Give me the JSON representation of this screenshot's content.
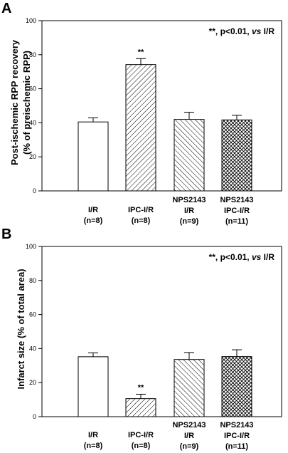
{
  "chart_data": [
    {
      "panel": "A",
      "type": "bar",
      "title": "",
      "ylabel": "Post-ischemic RPP recovery",
      "ylabel2": "(% of preischemic RPP)",
      "ylim": [
        0,
        100
      ],
      "yticks": [
        "0",
        "20",
        "40",
        "60",
        "80",
        "100"
      ],
      "annotation": {
        "prefix": "**, p<0.01, ",
        "emph": "vs",
        "suffix": " I/R"
      },
      "categories": [
        {
          "line1": "I/R",
          "line2": "(n=8)"
        },
        {
          "line1": "IPC-I/R",
          "line2": "(n=8)"
        },
        {
          "line1": "NPS2143",
          "line2": "I/R",
          "line3": "(n=9)"
        },
        {
          "line1": "NPS2143",
          "line2": "IPC-I/R",
          "line3": "(n=11)"
        }
      ],
      "values": [
        40.5,
        74.2,
        42.0,
        41.7
      ],
      "errors": [
        2.4,
        3.5,
        4.2,
        2.7
      ],
      "significance": [
        "",
        "**",
        "",
        ""
      ],
      "fills": [
        "white",
        "diagonal",
        "cross-diagonal",
        "crosshatch"
      ]
    },
    {
      "panel": "B",
      "type": "bar",
      "title": "",
      "ylabel": "Infarct size (% of total area)",
      "ylim": [
        0,
        100
      ],
      "yticks": [
        "0",
        "20",
        "40",
        "60",
        "80",
        "100"
      ],
      "annotation": {
        "prefix": "**, p<0.01, ",
        "emph": "vs",
        "suffix": " I/R"
      },
      "categories": [
        {
          "line1": "I/R",
          "line2": "(n=8)"
        },
        {
          "line1": "IPC-I/R",
          "line2": "(n=8)"
        },
        {
          "line1": "NPS2143",
          "line2": "I/R",
          "line3": "(n=9)"
        },
        {
          "line1": "NPS2143",
          "line2": "IPC-I/R",
          "line3": "(n=11)"
        }
      ],
      "values": [
        35.2,
        10.6,
        33.6,
        35.3
      ],
      "errors": [
        2.3,
        2.6,
        4.1,
        4.0
      ],
      "significance": [
        "",
        "**",
        "",
        ""
      ],
      "fills": [
        "white",
        "diagonal",
        "cross-diagonal",
        "crosshatch"
      ]
    }
  ]
}
